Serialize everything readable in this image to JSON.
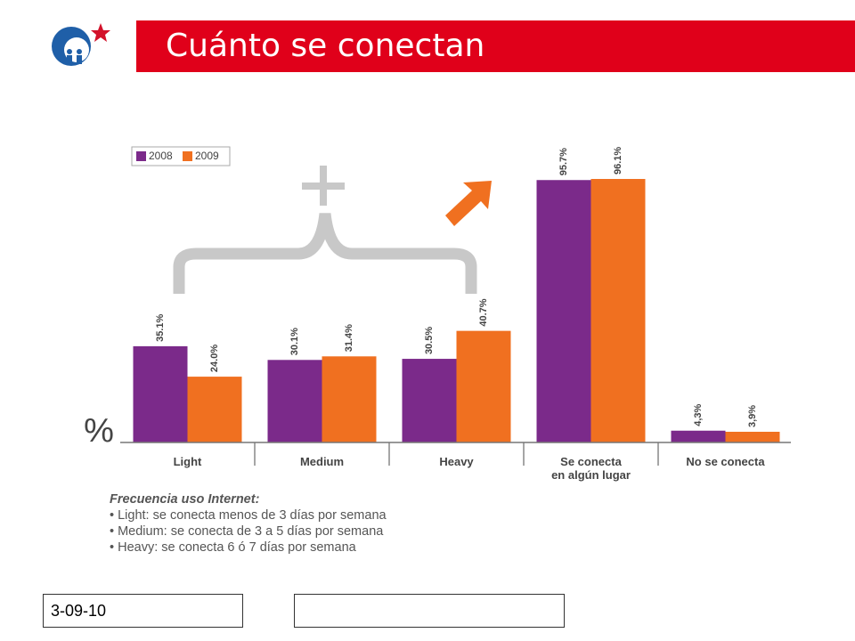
{
  "chart_data": {
    "type": "bar",
    "title": "Cuánto se conectan",
    "y_label": "%",
    "categories": [
      "Light",
      "Medium",
      "Heavy",
      "Se conecta\nen algún lugar",
      "No se conecta"
    ],
    "series": [
      {
        "name": "2008",
        "color": "#7b2a8a",
        "values": [
          35.1,
          30.1,
          30.5,
          95.7,
          4.3
        ],
        "value_labels": [
          "35.1%",
          "30.1%",
          "30.5%",
          "95.7%",
          "4,3%"
        ]
      },
      {
        "name": "2009",
        "color": "#f07020",
        "values": [
          24.0,
          31.4,
          40.7,
          96.1,
          3.9
        ],
        "value_labels": [
          "24.0%",
          "31.4%",
          "40.7%",
          "96.1%",
          "3,9%"
        ]
      }
    ],
    "ylim": [
      0,
      100
    ],
    "legend": "top-left"
  },
  "notes": {
    "title": "Frecuencia uso Internet:",
    "lines": [
      "• Light: se conecta menos de 3 días por semana",
      "• Medium: se conecta de 3 a 5 días por semana",
      "• Heavy: se conecta 6 ó 7 días por semana"
    ]
  },
  "footer": {
    "date": "3-09-10"
  }
}
